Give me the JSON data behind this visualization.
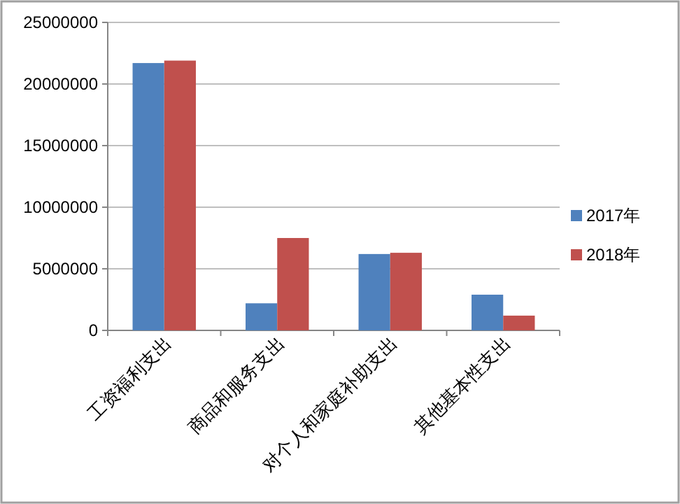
{
  "chart_data": {
    "type": "bar",
    "categories": [
      "工资福利支出",
      "商品和服务支出",
      "对个人和家庭补助支出",
      "其他基本性支出"
    ],
    "series": [
      {
        "name": "2017年",
        "color": "#4f81bd",
        "values": [
          21700000,
          2200000,
          6200000,
          2900000
        ]
      },
      {
        "name": "2018年",
        "color": "#c0504d",
        "values": [
          21900000,
          7500000,
          6300000,
          1200000
        ]
      }
    ],
    "ylim": [
      0,
      25000000
    ],
    "yticks": [
      0,
      5000000,
      10000000,
      15000000,
      20000000,
      25000000
    ],
    "grid": "y",
    "legend": "right"
  }
}
